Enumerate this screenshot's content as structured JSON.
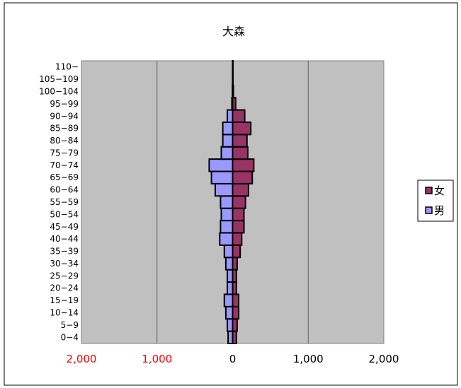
{
  "chart_data": {
    "type": "bar",
    "orientation": "horizontal",
    "subtype": "population-pyramid",
    "title": "大森",
    "categories": [
      "0-4",
      "5-9",
      "10-14",
      "15-19",
      "20-24",
      "25-29",
      "30-34",
      "35-39",
      "40-44",
      "45-49",
      "50-54",
      "55-59",
      "60-64",
      "65-69",
      "70-74",
      "75-79",
      "80-84",
      "85-89",
      "90-94",
      "95-99",
      "100-104",
      "105-109",
      "110-"
    ],
    "category_labels": [
      "0−4",
      "5−9",
      "10−14",
      "15−19",
      "20−24",
      "25−29",
      "30−34",
      "35−39",
      "40−44",
      "45−49",
      "50−54",
      "55−59",
      "60−64",
      "65−69",
      "70−74",
      "75−79",
      "80−84",
      "85−89",
      "90−94",
      "95−99",
      "100−104",
      "105−109",
      "110−"
    ],
    "series": [
      {
        "name": "女",
        "color": "#993366",
        "direction": "right",
        "values": [
          50,
          60,
          80,
          80,
          50,
          50,
          60,
          100,
          120,
          150,
          150,
          170,
          210,
          260,
          280,
          200,
          190,
          240,
          160,
          40,
          10,
          5,
          2
        ]
      },
      {
        "name": "男",
        "color": "#9999ff",
        "direction": "left",
        "values": [
          60,
          70,
          90,
          110,
          70,
          70,
          90,
          110,
          170,
          160,
          150,
          160,
          230,
          280,
          310,
          150,
          130,
          130,
          70,
          10,
          3,
          1,
          1
        ]
      }
    ],
    "x_ticks": [
      {
        "label": "2,000",
        "value": -2000,
        "color": "#ff0000"
      },
      {
        "label": "1,000",
        "value": -1000,
        "color": "#ff0000"
      },
      {
        "label": "0",
        "value": 0,
        "color": "#000000"
      },
      {
        "label": "1,000",
        "value": 1000,
        "color": "#000000"
      },
      {
        "label": "2,000",
        "value": 2000,
        "color": "#000000"
      }
    ],
    "xlim": [
      -2000,
      2000
    ],
    "grid": "vertical",
    "plot_background": "#c0c0c0",
    "legend": "right",
    "legend_order": [
      "女",
      "男"
    ]
  }
}
